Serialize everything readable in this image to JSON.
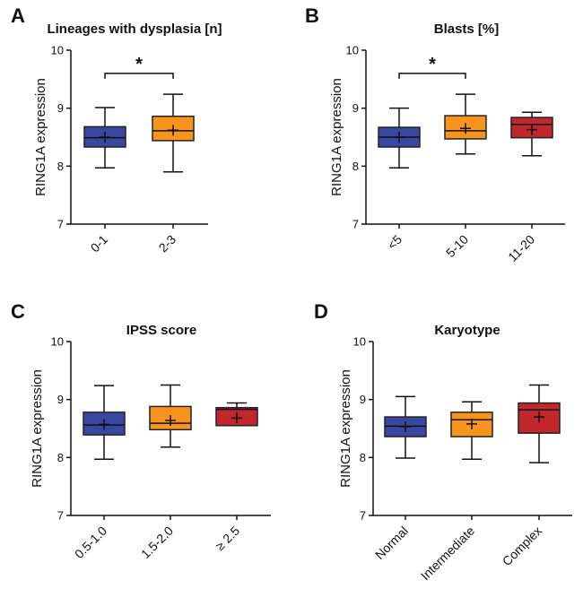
{
  "colors": {
    "blue": "#3a47a0",
    "orange": "#f7941d",
    "red": "#c1272d"
  },
  "chart_data": [
    {
      "type": "box",
      "panel_letter": "A",
      "title": "Lineages with dysplasia [n]",
      "ylabel": "RING1A expression",
      "ylim": [
        7,
        10
      ],
      "yticks": [
        "7",
        "8",
        "9",
        "10"
      ],
      "categories": [
        "0-1",
        "2-3"
      ],
      "boxes": [
        {
          "min": 7.97,
          "q1": 8.33,
          "median": 8.49,
          "q3": 8.68,
          "max": 9.01,
          "mean": 8.5,
          "color": "#3a47a0"
        },
        {
          "min": 7.9,
          "q1": 8.44,
          "median": 8.61,
          "q3": 8.86,
          "max": 9.24,
          "mean": 8.62,
          "color": "#f7941d"
        }
      ],
      "significance": [
        {
          "from": 0,
          "to": 1,
          "label": "*"
        }
      ]
    },
    {
      "type": "box",
      "panel_letter": "B",
      "title": "Blasts [%]",
      "ylabel": "RING1A expression",
      "ylim": [
        7,
        10
      ],
      "yticks": [
        "7",
        "8",
        "9",
        "10"
      ],
      "categories": [
        "<5",
        "5-10",
        "11-20"
      ],
      "boxes": [
        {
          "min": 7.97,
          "q1": 8.33,
          "median": 8.5,
          "q3": 8.67,
          "max": 9.0,
          "mean": 8.5,
          "color": "#3a47a0"
        },
        {
          "min": 8.21,
          "q1": 8.47,
          "median": 8.61,
          "q3": 8.87,
          "max": 9.24,
          "mean": 8.65,
          "color": "#f7941d"
        },
        {
          "min": 8.18,
          "q1": 8.49,
          "median": 8.72,
          "q3": 8.84,
          "max": 8.93,
          "mean": 8.63,
          "color": "#c1272d"
        }
      ],
      "significance": [
        {
          "from": 0,
          "to": 1,
          "label": "*"
        }
      ]
    },
    {
      "type": "box",
      "panel_letter": "C",
      "title": "IPSS score",
      "ylabel": "RING1A expression",
      "ylim": [
        7,
        10
      ],
      "yticks": [
        "7",
        "8",
        "9",
        "10"
      ],
      "categories": [
        "0.5-1.0",
        "1.5-2.0",
        "≥ 2.5"
      ],
      "boxes": [
        {
          "min": 7.97,
          "q1": 8.39,
          "median": 8.56,
          "q3": 8.78,
          "max": 9.24,
          "mean": 8.57,
          "color": "#3a47a0"
        },
        {
          "min": 8.18,
          "q1": 8.48,
          "median": 8.59,
          "q3": 8.88,
          "max": 9.25,
          "mean": 8.64,
          "color": "#f7941d"
        },
        {
          "min": 8.55,
          "q1": 8.55,
          "median": 8.83,
          "q3": 8.86,
          "max": 8.94,
          "mean": 8.68,
          "color": "#c1272d"
        }
      ],
      "significance": []
    },
    {
      "type": "box",
      "panel_letter": "D",
      "title": "Karyotype",
      "ylabel": "RING1A expression",
      "ylim": [
        7,
        10
      ],
      "yticks": [
        "7",
        "8",
        "9",
        "10"
      ],
      "categories": [
        "Normal",
        "Intermediate",
        "Complex"
      ],
      "boxes": [
        {
          "min": 7.99,
          "q1": 8.36,
          "median": 8.54,
          "q3": 8.7,
          "max": 9.05,
          "mean": 8.53,
          "color": "#3a47a0"
        },
        {
          "min": 7.97,
          "q1": 8.36,
          "median": 8.65,
          "q3": 8.78,
          "max": 8.96,
          "mean": 8.58,
          "color": "#f7941d"
        },
        {
          "min": 7.91,
          "q1": 8.42,
          "median": 8.82,
          "q3": 8.94,
          "max": 9.25,
          "mean": 8.7,
          "color": "#c1272d"
        }
      ],
      "significance": []
    }
  ]
}
